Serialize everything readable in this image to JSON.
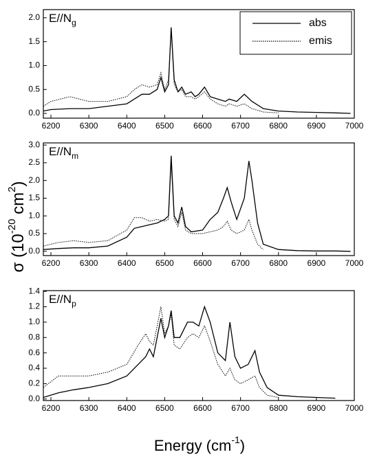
{
  "ylabel": [
    "σ (10",
    "-20",
    " cm",
    "2",
    ")"
  ],
  "xlabel": [
    "Energy (cm",
    "-1",
    ")"
  ],
  "chart_data": [
    {
      "type": "line",
      "label": "E//N",
      "label_sub": "g",
      "legend": "upper right",
      "xlim": [
        6180,
        7000
      ],
      "xticks": [
        6200,
        6300,
        6400,
        6500,
        6600,
        6700,
        6800,
        6900,
        7000
      ],
      "ylim": [
        -0.1,
        2.17
      ],
      "yticks": [
        {
          "value": 0,
          "label": "0.0"
        },
        0.5,
        {
          "value": 1,
          "label": "1.0"
        },
        1.5,
        {
          "value": 2,
          "label": "2.0"
        }
      ],
      "x": [
        6180,
        6200,
        6250,
        6300,
        6350,
        6400,
        6420,
        6440,
        6460,
        6480,
        6490,
        6500,
        6510,
        6517,
        6525,
        6535,
        6545,
        6555,
        6570,
        6580,
        6590,
        6605,
        6620,
        6640,
        6660,
        6670,
        6690,
        6710,
        6730,
        6760,
        6800,
        6850,
        6900,
        6950,
        6990
      ],
      "series": [
        {
          "name": "abs",
          "color": "#000000",
          "style": "solid",
          "values": [
            0.05,
            0.08,
            0.1,
            0.1,
            0.15,
            0.2,
            0.3,
            0.4,
            0.4,
            0.5,
            0.75,
            0.45,
            0.6,
            1.8,
            0.7,
            0.45,
            0.55,
            0.4,
            0.45,
            0.35,
            0.4,
            0.55,
            0.35,
            0.3,
            0.25,
            0.3,
            0.25,
            0.4,
            0.25,
            0.1,
            0.05,
            0.03,
            0.02,
            0.01,
            0.0
          ]
        },
        {
          "name": "emis",
          "color": "#000000",
          "style": "dotted",
          "values": [
            0.15,
            0.25,
            0.35,
            0.25,
            0.25,
            0.35,
            0.5,
            0.6,
            0.55,
            0.6,
            0.85,
            0.5,
            0.7,
            1.75,
            0.6,
            0.45,
            0.5,
            0.35,
            0.35,
            0.3,
            0.35,
            0.45,
            0.3,
            0.2,
            0.15,
            0.2,
            0.15,
            0.2,
            0.1,
            0.03,
            0.01,
            null,
            null,
            null,
            null
          ]
        }
      ]
    },
    {
      "type": "line",
      "label": "E//N",
      "label_sub": "m",
      "xlim": [
        6180,
        7000
      ],
      "xticks": [
        6200,
        6300,
        6400,
        6500,
        6600,
        6700,
        6800,
        6900,
        7000
      ],
      "ylim": [
        -0.12,
        3.06
      ],
      "yticks": [
        {
          "value": 0,
          "label": "0.0"
        },
        0.5,
        {
          "value": 1,
          "label": "1.0"
        },
        1.5,
        {
          "value": 2,
          "label": "2.0"
        },
        2.5,
        {
          "value": 3,
          "label": "3.0"
        }
      ],
      "x": [
        6180,
        6220,
        6260,
        6300,
        6350,
        6400,
        6420,
        6440,
        6460,
        6480,
        6500,
        6510,
        6517,
        6525,
        6535,
        6545,
        6555,
        6570,
        6600,
        6620,
        6640,
        6655,
        6665,
        6675,
        6690,
        6710,
        6722,
        6730,
        6745,
        6760,
        6800,
        6850,
        6900,
        6950,
        6990
      ],
      "series": [
        {
          "color": "#000000",
          "style": "solid",
          "values": [
            0.05,
            0.08,
            0.1,
            0.1,
            0.15,
            0.4,
            0.65,
            0.7,
            0.75,
            0.8,
            0.9,
            1.0,
            2.7,
            1.0,
            0.8,
            1.25,
            0.7,
            0.55,
            0.6,
            0.9,
            1.1,
            1.5,
            1.8,
            1.4,
            0.9,
            1.5,
            2.55,
            2.0,
            0.8,
            0.2,
            0.05,
            0.02,
            0.01,
            0.01,
            0.0
          ]
        },
        {
          "color": "#000000",
          "style": "dotted",
          "values": [
            0.15,
            0.25,
            0.3,
            0.25,
            0.3,
            0.6,
            0.95,
            0.95,
            0.85,
            0.9,
            0.85,
            0.9,
            2.5,
            0.9,
            0.7,
            1.1,
            0.6,
            0.5,
            0.5,
            0.55,
            0.6,
            0.7,
            0.85,
            0.6,
            0.5,
            0.6,
            0.9,
            0.6,
            0.2,
            0.05,
            null,
            null,
            null,
            null,
            null
          ]
        }
      ]
    },
    {
      "type": "line",
      "label": "E//N",
      "label_sub": "p",
      "xlim": [
        6180,
        7000
      ],
      "xticks": [
        6200,
        6300,
        6400,
        6500,
        6600,
        6700,
        6800,
        6900,
        7000
      ],
      "ylim": [
        -0.02,
        1.41
      ],
      "yticks": [
        {
          "value": 0,
          "label": "0.0"
        },
        0.2,
        0.4,
        0.6,
        0.8,
        {
          "value": 1,
          "label": "1.0"
        },
        1.2,
        1.4
      ],
      "x": [
        6180,
        6220,
        6260,
        6300,
        6350,
        6400,
        6430,
        6450,
        6460,
        6470,
        6480,
        6490,
        6500,
        6510,
        6517,
        6525,
        6540,
        6560,
        6575,
        6590,
        6605,
        6620,
        6640,
        6660,
        6672,
        6685,
        6700,
        6720,
        6738,
        6750,
        6770,
        6800,
        6850,
        6900,
        6950
      ],
      "series": [
        {
          "color": "#000000",
          "style": "solid",
          "values": [
            0.02,
            0.08,
            0.12,
            0.15,
            0.2,
            0.3,
            0.45,
            0.55,
            0.65,
            0.55,
            0.8,
            1.05,
            0.8,
            0.95,
            1.15,
            0.8,
            0.8,
            1.0,
            1.0,
            0.95,
            1.2,
            1.0,
            0.6,
            0.5,
            1.0,
            0.55,
            0.4,
            0.45,
            0.63,
            0.35,
            0.15,
            0.05,
            0.03,
            0.02,
            0.01
          ]
        },
        {
          "color": "#000000",
          "style": "dotted",
          "values": [
            0.15,
            0.3,
            0.3,
            0.3,
            0.35,
            0.45,
            0.7,
            0.85,
            0.75,
            0.7,
            0.95,
            1.2,
            0.85,
            0.95,
            1.1,
            0.7,
            0.65,
            0.8,
            0.85,
            0.8,
            0.95,
            0.75,
            0.45,
            0.3,
            0.4,
            0.25,
            0.2,
            0.25,
            0.3,
            0.15,
            0.05,
            0.02,
            null,
            null,
            null
          ]
        }
      ]
    }
  ]
}
